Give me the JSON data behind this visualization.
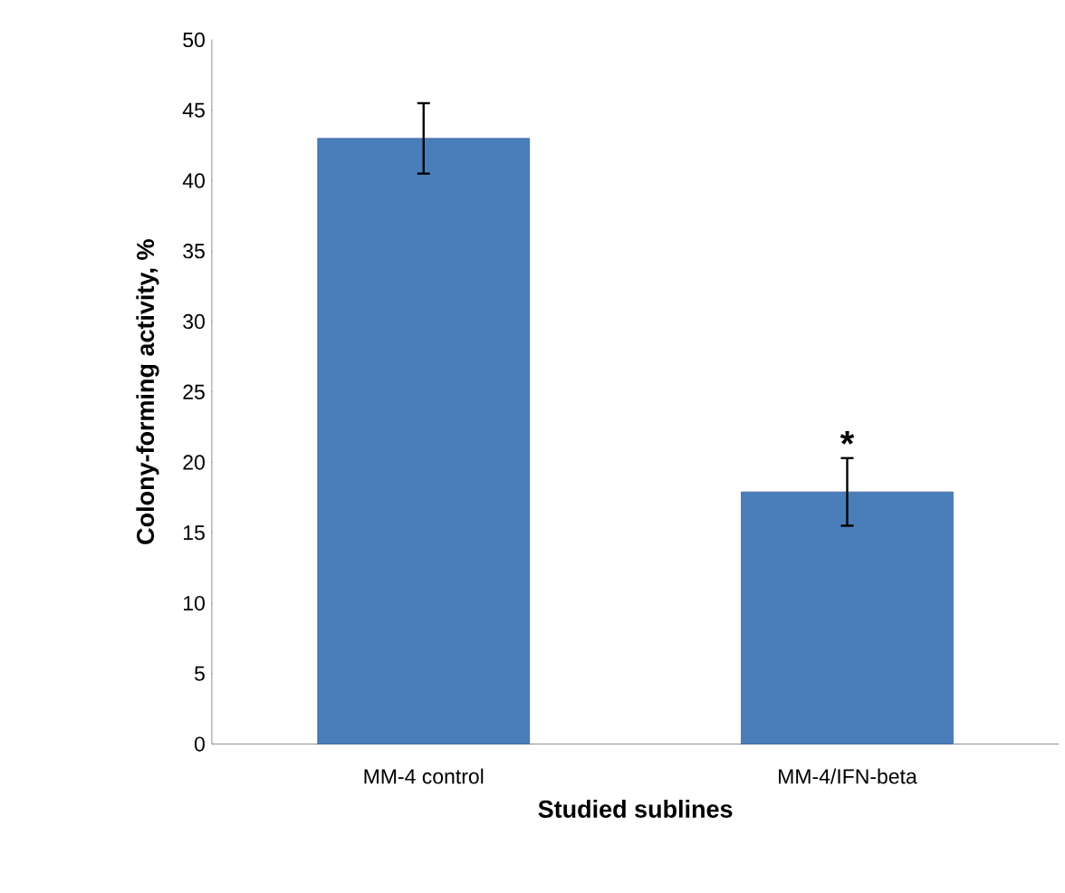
{
  "chart_data": {
    "type": "bar",
    "xlabel": "Studied sublines",
    "ylabel": "Colony-forming activity, %",
    "categories": [
      "MM-4 control",
      "MM-4/IFN-beta"
    ],
    "values": [
      43,
      17.9
    ],
    "errors": [
      2.5,
      2.4
    ],
    "color": "#4a7ebb",
    "ylim": [
      0,
      50
    ],
    "yticks": [
      0,
      5,
      10,
      15,
      20,
      25,
      30,
      35,
      40,
      45,
      50
    ],
    "annotations": [
      {
        "text": "*",
        "x": "MM-4/IFN-beta",
        "y": 20.3
      }
    ]
  }
}
